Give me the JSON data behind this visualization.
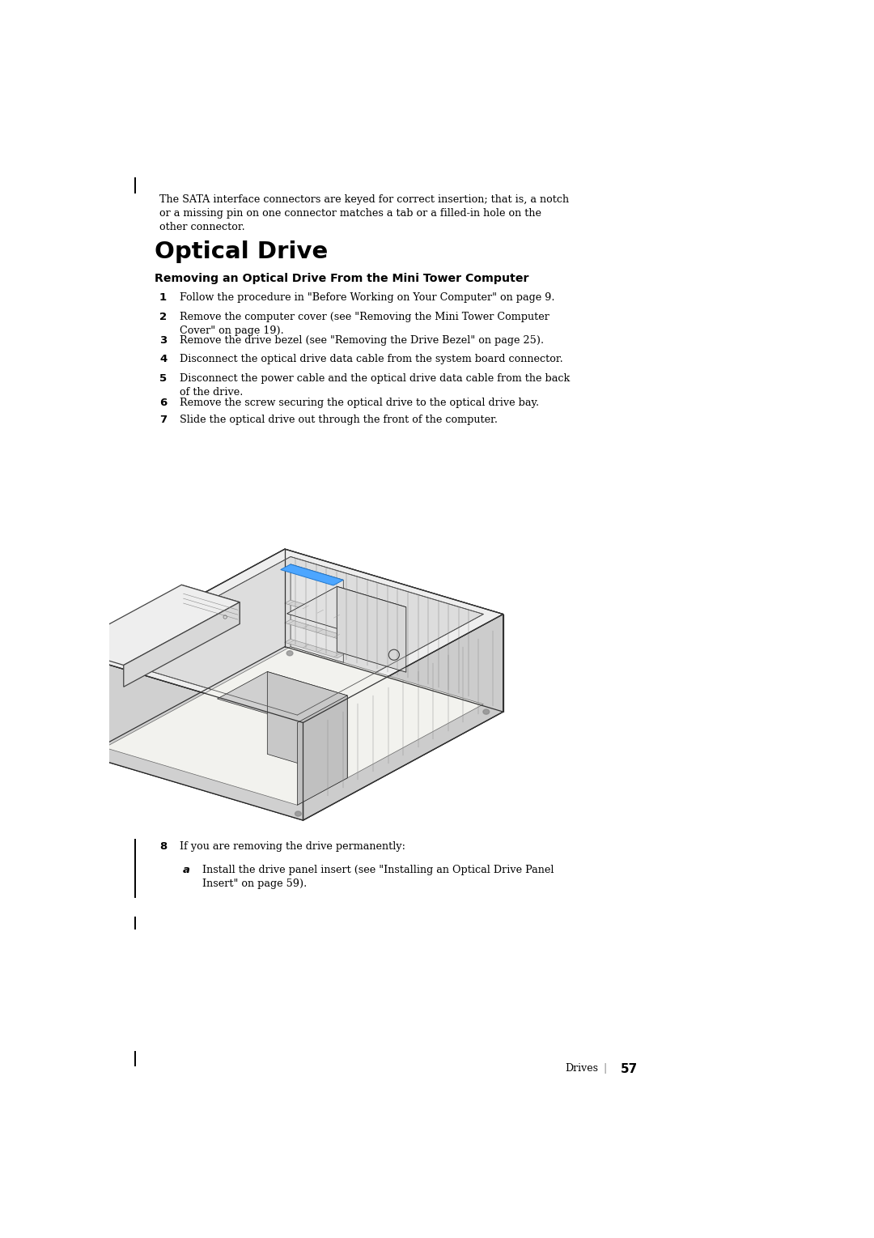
{
  "bg_color": "#ffffff",
  "page_width": 10.8,
  "page_height": 15.29,
  "text_color": "#000000",
  "sidebar_bar_color": "#000000",
  "intro_text_line1": "The SATA interface connectors are keyed for correct insertion; that is, a notch",
  "intro_text_line2": "or a missing pin on one connector matches a tab or a filled-in hole on the",
  "intro_text_line3": "other connector.",
  "section_title": "Optical Drive",
  "subsection_title": "Removing an Optical Drive From the Mini Tower Computer",
  "steps": [
    {
      "num": "1",
      "lines": [
        "Follow the procedure in \"Before Working on Your Computer\" on page 9."
      ]
    },
    {
      "num": "2",
      "lines": [
        "Remove the computer cover (see \"Removing the Mini Tower Computer",
        "Cover\" on page 19)."
      ]
    },
    {
      "num": "3",
      "lines": [
        "Remove the drive bezel (see \"Removing the Drive Bezel\" on page 25)."
      ]
    },
    {
      "num": "4",
      "lines": [
        "Disconnect the optical drive data cable from the system board connector."
      ]
    },
    {
      "num": "5",
      "lines": [
        "Disconnect the power cable and the optical drive data cable from the back",
        "of the drive."
      ]
    },
    {
      "num": "6",
      "lines": [
        "Remove the screw securing the optical drive to the optical drive bay."
      ]
    },
    {
      "num": "7",
      "lines": [
        "Slide the optical drive out through the front of the computer."
      ]
    }
  ],
  "step8_text": "If you are removing the drive permanently:",
  "step8a_lines": [
    "Install the drive panel insert (see \"Installing an Optical Drive Panel",
    "Insert\" on page 59)."
  ],
  "footer_text": "Drives",
  "footer_sep": "|",
  "footer_page": "57",
  "arrow_color": "#4da6ff",
  "lc": "#222222",
  "lw_main": 0.9,
  "lw_thin": 0.5
}
